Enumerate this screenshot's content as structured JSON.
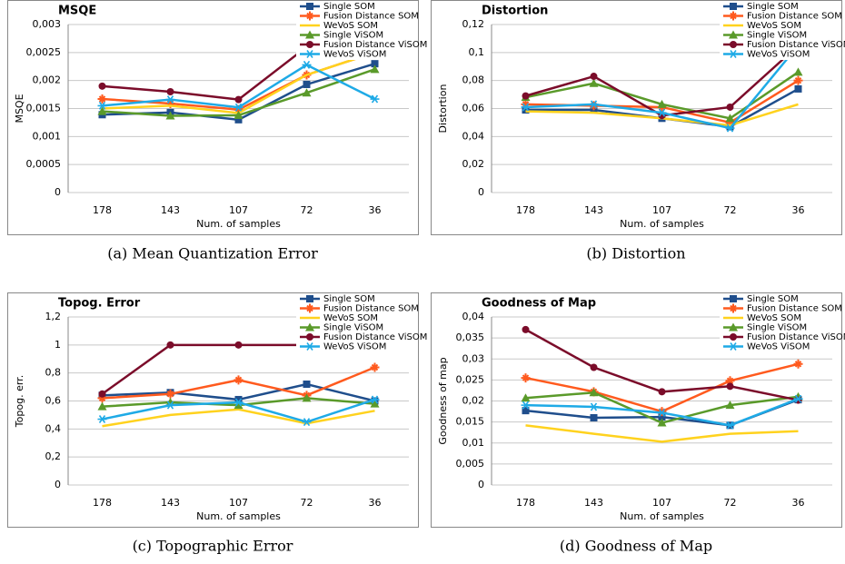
{
  "chart_data": [
    {
      "type": "line",
      "title": "MSQE",
      "caption": "(a) Mean Quantization Error",
      "xlabel": "Num. of samples",
      "ylabel": "MSQE",
      "categories": [
        "178",
        "143",
        "107",
        "72",
        "36"
      ],
      "ylim": [
        0,
        0.003
      ],
      "yticks": [
        0,
        {
          "value": 0.0005,
          "label": "0,0005"
        },
        {
          "value": 0.001,
          "label": "0,001"
        },
        {
          "value": 0.0015,
          "label": "0,0015"
        },
        {
          "value": 0.002,
          "label": "0,002"
        },
        {
          "value": 0.0025,
          "label": "0,0025"
        },
        {
          "value": 0.003,
          "label": "0,003"
        }
      ],
      "grid": true,
      "legend": "top-right",
      "series": [
        {
          "name": "Single SOM",
          "color": "#1f4e8c",
          "marker": "square",
          "values": [
            0.00139,
            0.00143,
            0.0013,
            0.00193,
            0.0023
          ]
        },
        {
          "name": "Fusion Distance SOM",
          "color": "#ff5a1e",
          "marker": "star",
          "values": [
            0.00167,
            0.00159,
            0.00148,
            0.0021,
            0.0025
          ]
        },
        {
          "name": "WeVoS SOM",
          "color": "#ffd21e",
          "marker": "none",
          "values": [
            0.0015,
            0.00155,
            0.00142,
            0.0021,
            0.0025
          ]
        },
        {
          "name": "Single ViSOM",
          "color": "#5a9a2a",
          "marker": "triangle",
          "values": [
            0.00145,
            0.00137,
            0.00138,
            0.00178,
            0.0022
          ]
        },
        {
          "name": "Fusion Distance ViSOM",
          "color": "#7b0c2a",
          "marker": "circle",
          "values": [
            0.0019,
            0.0018,
            0.00166,
            0.0026,
            0.0028
          ]
        },
        {
          "name": "WeVoS ViSOM",
          "color": "#1eaae6",
          "marker": "asterisk",
          "values": [
            0.00155,
            0.00166,
            0.00152,
            0.00228,
            0.00167
          ]
        }
      ]
    },
    {
      "type": "line",
      "title": "Distortion",
      "caption": "(b) Distortion",
      "xlabel": "Num. of samples",
      "ylabel": "Distortion",
      "categories": [
        "178",
        "143",
        "107",
        "72",
        "36"
      ],
      "ylim": [
        0,
        0.12
      ],
      "yticks": [
        0,
        {
          "value": 0.02,
          "label": "0,02"
        },
        {
          "value": 0.04,
          "label": "0,04"
        },
        {
          "value": 0.06,
          "label": "0,06"
        },
        {
          "value": 0.08,
          "label": "0,08"
        },
        {
          "value": 0.1,
          "label": "0,1"
        },
        {
          "value": 0.12,
          "label": "0,12"
        }
      ],
      "grid": true,
      "legend": "top-right",
      "series": [
        {
          "name": "Single SOM",
          "color": "#1f4e8c",
          "marker": "square",
          "values": [
            0.059,
            0.059,
            0.053,
            0.047,
            0.074
          ]
        },
        {
          "name": "Fusion Distance SOM",
          "color": "#ff5a1e",
          "marker": "star",
          "values": [
            0.063,
            0.062,
            0.061,
            0.05,
            0.08
          ]
        },
        {
          "name": "WeVoS SOM",
          "color": "#ffd21e",
          "marker": "none",
          "values": [
            0.058,
            0.057,
            0.053,
            0.048,
            0.063
          ]
        },
        {
          "name": "Single ViSOM",
          "color": "#5a9a2a",
          "marker": "triangle",
          "values": [
            0.068,
            0.078,
            0.063,
            0.053,
            0.086
          ]
        },
        {
          "name": "Fusion Distance ViSOM",
          "color": "#7b0c2a",
          "marker": "circle",
          "values": [
            0.069,
            0.083,
            0.055,
            0.061,
            0.105
          ]
        },
        {
          "name": "WeVoS ViSOM",
          "color": "#1eaae6",
          "marker": "asterisk",
          "values": [
            0.061,
            0.063,
            0.057,
            0.046,
            0.105
          ]
        }
      ]
    },
    {
      "type": "line",
      "title": "Topog. Error",
      "caption": "(c) Topographic Error",
      "xlabel": "Num. of samples",
      "ylabel": "Topog. err.",
      "categories": [
        "178",
        "143",
        "107",
        "72",
        "36"
      ],
      "ylim": [
        0,
        1.2
      ],
      "yticks": [
        0,
        {
          "value": 0.2,
          "label": "0,2"
        },
        {
          "value": 0.4,
          "label": "0,4"
        },
        {
          "value": 0.6,
          "label": "0,6"
        },
        {
          "value": 0.8,
          "label": "0,8"
        },
        1,
        {
          "value": 1.2,
          "label": "1,2"
        }
      ],
      "grid": true,
      "legend": "top-right",
      "series": [
        {
          "name": "Single SOM",
          "color": "#1f4e8c",
          "marker": "square",
          "values": [
            0.64,
            0.66,
            0.61,
            0.72,
            0.6
          ]
        },
        {
          "name": "Fusion Distance SOM",
          "color": "#ff5a1e",
          "marker": "star",
          "values": [
            0.62,
            0.65,
            0.75,
            0.64,
            0.84
          ]
        },
        {
          "name": "WeVoS SOM",
          "color": "#ffd21e",
          "marker": "none",
          "values": [
            0.42,
            0.5,
            0.54,
            0.44,
            0.53
          ]
        },
        {
          "name": "Single ViSOM",
          "color": "#5a9a2a",
          "marker": "triangle",
          "values": [
            0.56,
            0.59,
            0.57,
            0.62,
            0.58
          ]
        },
        {
          "name": "Fusion Distance ViSOM",
          "color": "#7b0c2a",
          "marker": "circle",
          "values": [
            0.65,
            1,
            1,
            1,
            1
          ]
        },
        {
          "name": "WeVoS ViSOM",
          "color": "#1eaae6",
          "marker": "asterisk",
          "values": [
            0.47,
            0.57,
            0.59,
            0.45,
            0.61
          ]
        }
      ]
    },
    {
      "type": "line",
      "title": "Goodness of Map",
      "caption": "(d) Goodness of Map",
      "xlabel": "Num. of samples",
      "ylabel": "Goodness of map",
      "categories": [
        "178",
        "143",
        "107",
        "72",
        "36"
      ],
      "ylim": [
        0,
        0.04
      ],
      "yticks": [
        0,
        {
          "value": 0.005,
          "label": "0,005"
        },
        {
          "value": 0.01,
          "label": "0,01"
        },
        {
          "value": 0.015,
          "label": "0,015"
        },
        {
          "value": 0.02,
          "label": "0,02"
        },
        {
          "value": 0.025,
          "label": "0,025"
        },
        {
          "value": 0.03,
          "label": "0,03"
        },
        {
          "value": 0.035,
          "label": "0,035"
        },
        {
          "value": 0.04,
          "label": "0,04"
        }
      ],
      "grid": true,
      "legend": "top-right",
      "series": [
        {
          "name": "Single SOM",
          "color": "#1f4e8c",
          "marker": "square",
          "values": [
            0.0177,
            0.016,
            0.0162,
            0.0142,
            0.0203
          ]
        },
        {
          "name": "Fusion Distance SOM",
          "color": "#ff5a1e",
          "marker": "star",
          "values": [
            0.0255,
            0.0222,
            0.0175,
            0.0248,
            0.0288
          ]
        },
        {
          "name": "WeVoS SOM",
          "color": "#ffd21e",
          "marker": "none",
          "values": [
            0.0142,
            0.0122,
            0.0103,
            0.0122,
            0.0128
          ]
        },
        {
          "name": "Single ViSOM",
          "color": "#5a9a2a",
          "marker": "triangle",
          "values": [
            0.0207,
            0.022,
            0.0148,
            0.019,
            0.021
          ]
        },
        {
          "name": "Fusion Distance ViSOM",
          "color": "#7b0c2a",
          "marker": "circle",
          "values": [
            0.037,
            0.028,
            0.0222,
            0.0235,
            0.0202
          ]
        },
        {
          "name": "WeVoS ViSOM",
          "color": "#1eaae6",
          "marker": "asterisk",
          "values": [
            0.019,
            0.0186,
            0.0172,
            0.0142,
            0.0205
          ]
        }
      ]
    }
  ]
}
